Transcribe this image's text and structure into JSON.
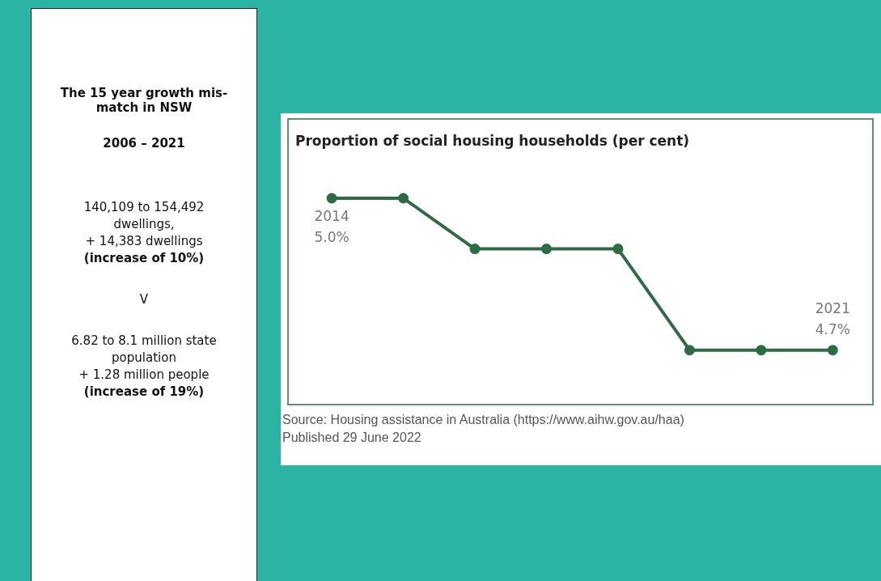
{
  "chart_data": [
    {
      "type": "other",
      "title": "The 15 year growth mis-match in NSW",
      "subtitle": "2006 – 2021",
      "annotations": [
        "140,109 to 154,492\ndwellings,\n+ 14,383 dwellings",
        "(increase of 10%)",
        "V",
        "6.82 to 8.1 million state\npopulation\n+ 1.28 million people",
        "(increase of 19%)"
      ]
    },
    {
      "type": "line",
      "title": "Proportion of social housing households (per cent)",
      "categories": [
        "2014",
        null,
        null,
        null,
        null,
        null,
        null,
        "2021"
      ],
      "values": [
        5.0,
        5.0,
        4.9,
        4.9,
        4.9,
        4.7,
        4.7,
        4.7
      ],
      "value_labels": [
        "5.0%",
        null,
        null,
        null,
        null,
        null,
        null,
        "4.7%"
      ],
      "color": "#2e6b45",
      "marker": "circle",
      "tick_labels": false,
      "annotations": [
        "Source: Housing assistance in Australia (https://www.aihw.gov.au/haa)",
        "Published 29 June 2022"
      ]
    }
  ]
}
